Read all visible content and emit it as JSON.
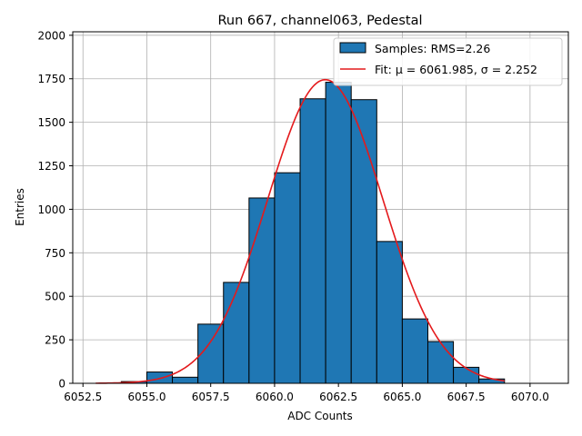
{
  "chart_data": {
    "type": "bar",
    "title": "Run 667, channel063, Pedestal",
    "xlabel": "ADC Counts",
    "ylabel": "Entries",
    "xlim": [
      6052.1,
      6071.5
    ],
    "ylim": [
      0,
      2020
    ],
    "xticks": [
      6052.5,
      6055.0,
      6057.5,
      6060.0,
      6062.5,
      6065.0,
      6067.5,
      6070.0
    ],
    "xtick_labels": [
      "6052.5",
      "6055.0",
      "6057.5",
      "6060.0",
      "6062.5",
      "6065.0",
      "6067.5",
      "6070.0"
    ],
    "yticks": [
      0,
      250,
      500,
      750,
      1000,
      1250,
      1500,
      1750,
      2000
    ],
    "ytick_labels": [
      "0",
      "250",
      "500",
      "750",
      "1000",
      "1250",
      "1500",
      "1750",
      "2000"
    ],
    "grid": true,
    "legend_position": "top-right",
    "bin_edges": [
      6053.0,
      6054.0,
      6055.0,
      6056.0,
      6057.0,
      6058.0,
      6059.0,
      6060.0,
      6061.0,
      6062.0,
      6063.0,
      6064.0,
      6065.0,
      6066.0,
      6067.0,
      6068.0,
      6069.0,
      6070.0,
      6071.0
    ],
    "bin_counts": [
      0,
      10,
      65,
      35,
      340,
      580,
      1065,
      1210,
      1635,
      1730,
      1630,
      815,
      370,
      240,
      92,
      25,
      0,
      0
    ],
    "series": [
      {
        "name": "Samples: RMS=2.26",
        "kind": "histogram",
        "color": "#1f77b4",
        "edgecolor": "#000000"
      },
      {
        "name": "Fit: μ = 6061.985, σ = 2.252",
        "kind": "line",
        "color": "#e41a1c",
        "mu": 6061.985,
        "sigma": 2.252,
        "amplitude": 1745,
        "x_range": [
          6053.0,
          6069.0
        ]
      }
    ]
  }
}
